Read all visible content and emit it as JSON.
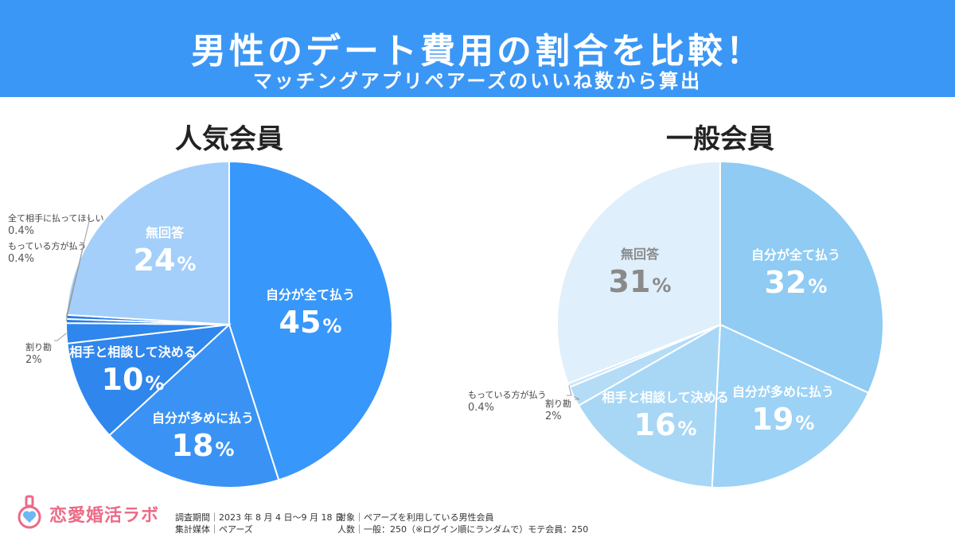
{
  "header": {
    "title": "男性のデート費用の割合を比較！",
    "subtitle": "マッチングアプリペアーズのいいね数から算出"
  },
  "colors": {
    "header_bg": "#3b97f5",
    "popular": [
      "#3897fa",
      "#3690f4",
      "#2f86ec",
      "#2b7ee6",
      "#3a93f4",
      "#a3cffa"
    ],
    "general": [
      "#8fcbf3",
      "#9cd2f5",
      "#a8d7f6",
      "#b5dcf7",
      "#cae6fa",
      "#dfeffb"
    ]
  },
  "chart_data": [
    {
      "type": "pie",
      "title": "人気会員",
      "slices": [
        {
          "label": "自分が全て払う",
          "value": 45,
          "display": "45"
        },
        {
          "label": "自分が多めに払う",
          "value": 18,
          "display": "18"
        },
        {
          "label": "相手と相談して決める",
          "value": 10,
          "display": "10"
        },
        {
          "label": "割り勘",
          "value": 2,
          "display": "2%"
        },
        {
          "label": "もっている方が払う",
          "value": 0.4,
          "display": "0.4%"
        },
        {
          "label": "全て相手に払ってほしい",
          "value": 0.4,
          "display": "0.4%"
        },
        {
          "label": "無回答",
          "value": 24,
          "display": "24"
        }
      ]
    },
    {
      "type": "pie",
      "title": "一般会員",
      "slices": [
        {
          "label": "自分が全て払う",
          "value": 32,
          "display": "32"
        },
        {
          "label": "自分が多めに払う",
          "value": 19,
          "display": "19"
        },
        {
          "label": "相手と相談して決める",
          "value": 16,
          "display": "16"
        },
        {
          "label": "割り勘",
          "value": 2,
          "display": "2%"
        },
        {
          "label": "もっている方が払う",
          "value": 0.4,
          "display": "0.4%"
        },
        {
          "label": "無回答",
          "value": 31,
          "display": "31"
        }
      ]
    }
  ],
  "footer": {
    "logo": "恋愛婚活ラボ",
    "period": "調査期間｜2023 年 8 月 4 日～9 月 18 日",
    "media": "集計媒体｜ペアーズ",
    "target": "対象｜ペアーズを利用している男性会員",
    "count": "人数｜一般：250（※ログイン順にランダムで）モテ会員：250"
  }
}
